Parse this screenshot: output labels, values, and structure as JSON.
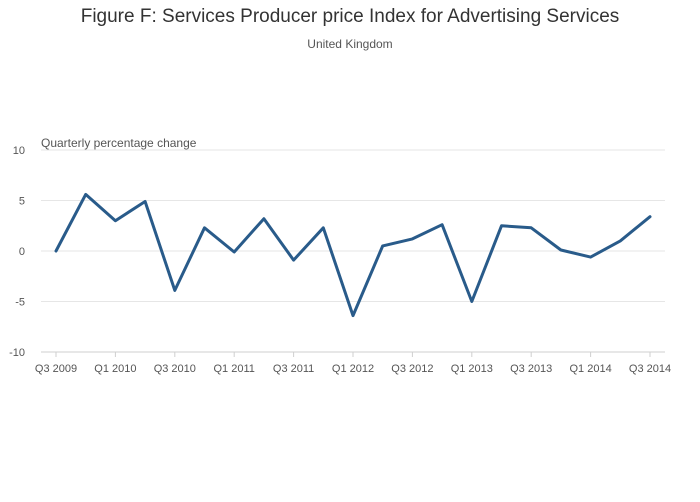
{
  "chart_data": {
    "type": "line",
    "title": "Figure F: Services Producer price Index for Advertising Services",
    "subtitle": "United Kingdom",
    "ylabel": "Quarterly percentage change",
    "xlabel": "",
    "ylim": [
      -10,
      10
    ],
    "yticks": [
      10,
      5,
      0,
      -5,
      -10
    ],
    "yticklabels": [
      "10",
      "5",
      "0",
      "-5",
      "-10"
    ],
    "xticklabels": [
      "Q3 2009",
      "Q1 2010",
      "Q3 2010",
      "Q1 2011",
      "Q3 2011",
      "Q1 2012",
      "Q3 2012",
      "Q1 2013",
      "Q3 2013",
      "Q1 2014",
      "Q3 2014"
    ],
    "categories": [
      "Q3 2009",
      "Q4 2009",
      "Q1 2010",
      "Q2 2010",
      "Q3 2010",
      "Q4 2010",
      "Q1 2011",
      "Q2 2011",
      "Q3 2011",
      "Q4 2011",
      "Q1 2012",
      "Q2 2012",
      "Q3 2012",
      "Q4 2012",
      "Q1 2013",
      "Q2 2013",
      "Q3 2013",
      "Q4 2013",
      "Q1 2014",
      "Q2 2014",
      "Q3 2014"
    ],
    "values": [
      0.0,
      5.6,
      3.0,
      4.9,
      -3.9,
      2.3,
      -0.1,
      3.2,
      -0.9,
      2.3,
      -6.4,
      0.5,
      1.2,
      2.6,
      -5.0,
      2.5,
      2.3,
      0.1,
      -0.6,
      1.0,
      3.4
    ],
    "grid": true,
    "line_color": "#295b8a"
  }
}
